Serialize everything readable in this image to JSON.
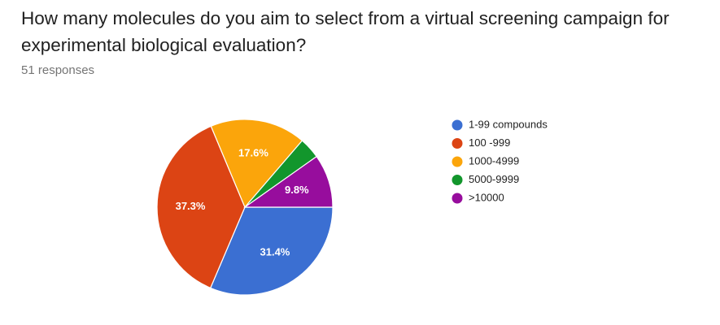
{
  "chart_data": {
    "type": "pie",
    "title": "How many molecules do you aim to select from a virtual screening campaign for experimental biological evaluation?",
    "subtitle": "51 responses",
    "categories": [
      "1-99 compounds",
      "100 -999",
      "1000-4999",
      "5000-9999",
      ">10000"
    ],
    "values": [
      31.4,
      37.3,
      17.6,
      3.9,
      9.8
    ],
    "value_labels": [
      "31.4%",
      "37.3%",
      "17.6%",
      null,
      "9.8%"
    ],
    "colors": [
      "#3b6fd2",
      "#dc4414",
      "#fba50b",
      "#12962c",
      "#970d9d"
    ],
    "legend": "right"
  }
}
